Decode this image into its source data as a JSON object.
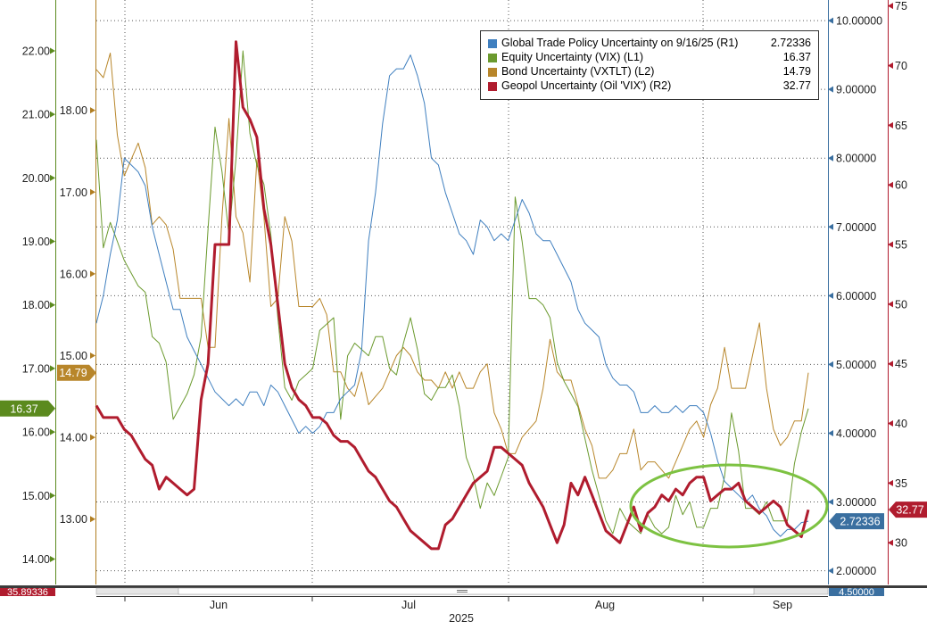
{
  "chart_data": {
    "type": "line",
    "legend_position": "top-right",
    "grid": true,
    "x_ticks": [
      "Jun",
      "Jul",
      "Aug",
      "Sep"
    ],
    "x_year_label": "2025",
    "axes": {
      "L1": {
        "range": [
          13.6,
          22.8
        ],
        "ticks": [
          14,
          15,
          16,
          17,
          18,
          19,
          20,
          21,
          22
        ],
        "tick_labels": [
          "14.00",
          "15.00",
          "16.00",
          "17.00",
          "18.00",
          "19.00",
          "20.00",
          "21.00",
          "22.00"
        ],
        "color": "#5b8a1e"
      },
      "L2": {
        "range": [
          12.2,
          19.35
        ],
        "ticks": [
          13,
          14,
          15,
          16,
          17,
          18
        ],
        "tick_labels": [
          "13.00",
          "14.00",
          "15.00",
          "16.00",
          "17.00",
          "18.00"
        ],
        "color": "#b07d20"
      },
      "R1": {
        "range": [
          1.8,
          10.3
        ],
        "ticks": [
          2,
          3,
          4,
          5,
          6,
          7,
          8,
          9,
          10
        ],
        "tick_labels": [
          "2.00000",
          "3.00000",
          "4.00000",
          "5.00000",
          "6.00000",
          "7.00000",
          "8.00000",
          "9.00000",
          "10.00000"
        ],
        "color": "#3a6fa0"
      },
      "R2": {
        "range": [
          26.5,
          75.5
        ],
        "ticks": [
          30,
          35,
          40,
          45,
          50,
          55,
          60,
          65,
          70,
          75
        ],
        "tick_labels": [
          "30",
          "35",
          "40",
          "45",
          "50",
          "55",
          "60",
          "65",
          "70",
          "75"
        ],
        "color": "#b01c2e"
      }
    },
    "badges": {
      "equity": "16.37",
      "bond": "14.79",
      "geopol": "32.77",
      "trade": "2.72336",
      "left_bottom": "35.89336",
      "right_bottom": "4.50000"
    },
    "series": [
      {
        "name": "Global Trade Policy Uncertainty on 9/16/25 (R1)",
        "legend_value": "2.72336",
        "axis": "R1",
        "color": "#3f7fbf",
        "width": 1,
        "y": [
          5.6,
          6.0,
          6.6,
          7.1,
          8.0,
          7.9,
          7.8,
          7.6,
          7.0,
          6.6,
          6.2,
          5.8,
          5.8,
          5.4,
          5.2,
          5.0,
          4.8,
          4.6,
          4.5,
          4.4,
          4.5,
          4.4,
          4.6,
          4.6,
          4.4,
          4.7,
          4.6,
          4.4,
          4.2,
          4.0,
          4.1,
          4.0,
          4.1,
          4.3,
          4.3,
          4.5,
          4.6,
          4.7,
          5.2,
          6.8,
          7.5,
          8.5,
          9.2,
          9.3,
          9.3,
          9.5,
          9.2,
          8.8,
          8.0,
          7.9,
          7.5,
          7.2,
          6.9,
          6.8,
          6.6,
          7.1,
          7.0,
          6.8,
          6.9,
          6.8,
          7.1,
          7.4,
          7.2,
          6.9,
          6.8,
          6.8,
          6.6,
          6.4,
          6.2,
          5.8,
          5.6,
          5.5,
          5.4,
          5.0,
          4.8,
          4.7,
          4.7,
          4.6,
          4.3,
          4.3,
          4.4,
          4.3,
          4.3,
          4.4,
          4.3,
          4.4,
          4.4,
          4.3,
          4.0,
          3.6,
          3.3,
          3.2,
          3.1,
          3.0,
          3.1,
          2.9,
          2.8,
          2.6,
          2.5,
          2.6,
          2.6,
          2.7,
          2.72
        ]
      },
      {
        "name": "Equity Uncertainty (VIX) (L1)",
        "legend_value": "16.37",
        "axis": "L1",
        "color": "#6b9a2e",
        "width": 1,
        "y": [
          20.6,
          18.9,
          19.3,
          19.0,
          18.7,
          18.5,
          18.3,
          18.2,
          17.5,
          17.4,
          17.1,
          16.2,
          16.4,
          16.6,
          16.9,
          17.5,
          19.2,
          20.8,
          20.1,
          19.1,
          20.3,
          22.0,
          20.7,
          20.2,
          19.9,
          19.1,
          17.8,
          16.7,
          16.5,
          16.8,
          16.9,
          17.0,
          17.6,
          17.7,
          17.8,
          16.2,
          17.2,
          17.4,
          17.3,
          17.2,
          17.5,
          17.5,
          17.0,
          16.9,
          17.4,
          17.8,
          17.3,
          16.6,
          16.5,
          16.7,
          16.7,
          16.9,
          16.4,
          15.6,
          15.3,
          14.8,
          15.2,
          15.0,
          15.3,
          15.6,
          19.7,
          19.0,
          18.1,
          18.1,
          18.0,
          17.8,
          17.1,
          16.8,
          16.6,
          16.4,
          15.9,
          15.4,
          15.0,
          14.6,
          14.4,
          14.8,
          14.6,
          14.5,
          14.4,
          14.7,
          14.5,
          14.4,
          14.5,
          15.0,
          14.7,
          14.9,
          14.5,
          14.5,
          14.8,
          14.8,
          15.3,
          16.3,
          15.7,
          14.8,
          14.8,
          14.7,
          14.9,
          14.6,
          14.6,
          14.6,
          15.5,
          16.0,
          16.37
        ]
      },
      {
        "name": "Bond Uncertainty (VXTLT) (L2)",
        "legend_value": "14.79",
        "axis": "L2",
        "color": "#b8862a",
        "width": 1,
        "y": [
          18.5,
          18.4,
          18.7,
          17.7,
          17.2,
          17.4,
          17.6,
          17.3,
          16.6,
          16.7,
          16.6,
          16.3,
          15.7,
          15.7,
          15.7,
          15.7,
          15.1,
          15.1,
          16.7,
          17.9,
          16.7,
          16.5,
          15.9,
          17.4,
          16.7,
          15.6,
          15.7,
          16.7,
          16.4,
          15.6,
          15.6,
          15.6,
          15.7,
          15.5,
          14.8,
          14.8,
          14.6,
          14.5,
          14.8,
          14.4,
          14.5,
          14.6,
          14.8,
          15.0,
          15.1,
          15.0,
          14.8,
          14.7,
          14.7,
          14.6,
          14.8,
          14.6,
          14.8,
          14.6,
          14.6,
          14.8,
          14.9,
          14.3,
          14.1,
          13.8,
          13.8,
          14.0,
          14.1,
          14.2,
          14.6,
          15.2,
          14.8,
          14.7,
          14.7,
          14.4,
          14.1,
          13.9,
          13.5,
          13.5,
          13.6,
          13.8,
          13.8,
          14.1,
          13.6,
          13.7,
          13.7,
          13.6,
          13.5,
          13.7,
          13.9,
          14.1,
          14.2,
          14.0,
          14.4,
          14.6,
          15.1,
          14.6,
          14.6,
          14.6,
          15.0,
          15.4,
          14.6,
          14.1,
          13.9,
          14.0,
          14.2,
          14.2,
          14.79
        ]
      },
      {
        "name": "Geopol Uncertainty (Oil 'VIX') (R2)",
        "legend_value": "32.77",
        "axis": "R2",
        "color": "#b01c2e",
        "width": 3,
        "y": [
          41.5,
          40.5,
          40.5,
          40.5,
          39.5,
          39.0,
          38.0,
          37.0,
          36.5,
          34.5,
          35.5,
          35.0,
          34.5,
          34.0,
          34.5,
          42.0,
          45.0,
          55.0,
          55.0,
          55.0,
          72.0,
          66.5,
          65.5,
          64.0,
          58.0,
          55.0,
          50.0,
          45.0,
          43.0,
          42.0,
          41.5,
          40.5,
          40.5,
          40.0,
          39.0,
          38.5,
          38.5,
          38.0,
          37.0,
          36.0,
          35.5,
          34.5,
          33.5,
          33.0,
          32.0,
          31.0,
          30.5,
          30.0,
          29.5,
          29.5,
          31.5,
          32.0,
          33.0,
          34.0,
          35.0,
          35.5,
          36.0,
          38.0,
          38.0,
          37.5,
          37.0,
          36.5,
          35.0,
          34.0,
          33.0,
          31.5,
          30.0,
          31.5,
          35.0,
          34.0,
          35.5,
          34.0,
          32.5,
          31.0,
          30.5,
          30.0,
          31.5,
          33.0,
          31.0,
          32.5,
          33.0,
          34.0,
          33.5,
          34.5,
          34.0,
          35.0,
          35.5,
          35.5,
          33.5,
          34.0,
          34.5,
          34.5,
          35.0,
          33.5,
          33.0,
          32.5,
          33.0,
          33.5,
          33.0,
          31.5,
          31.0,
          30.5,
          32.77
        ]
      }
    ]
  }
}
